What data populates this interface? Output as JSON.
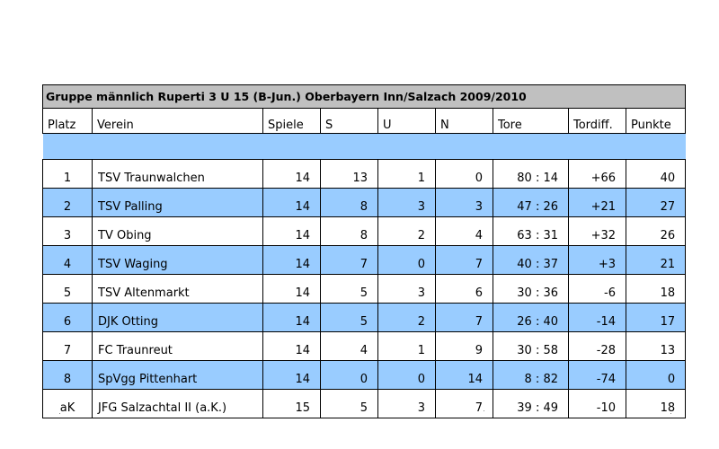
{
  "table": {
    "title": "Gruppe männlich Ruperti 3 U 15 (B-Jun.) Oberbayern Inn/Salzach 2009/2010",
    "headers": {
      "platz": "Platz",
      "verein": "Verein",
      "spiele": "Spiele",
      "s": "S",
      "u": "U",
      "n": "N",
      "tore": "Tore",
      "tordiff": "Tordiff.",
      "punkte": "Punkte"
    },
    "rows": [
      {
        "platz": "1",
        "verein": "TSV Traunwalchen",
        "spiele": "14",
        "s": "13",
        "u": "1",
        "n": "0",
        "tore": "80 : 14",
        "tordiff": "+66",
        "punkte": "40"
      },
      {
        "platz": "2",
        "verein": "TSV Palling",
        "spiele": "14",
        "s": "8",
        "u": "3",
        "n": "3",
        "tore": "47 : 26",
        "tordiff": "+21",
        "punkte": "27"
      },
      {
        "platz": "3",
        "verein": "TV Obing",
        "spiele": "14",
        "s": "8",
        "u": "2",
        "n": "4",
        "tore": "63 : 31",
        "tordiff": "+32",
        "punkte": "26"
      },
      {
        "platz": "4",
        "verein": "TSV Waging",
        "spiele": "14",
        "s": "7",
        "u": "0",
        "n": "7",
        "tore": "40 : 37",
        "tordiff": "+3",
        "punkte": "21"
      },
      {
        "platz": "5",
        "verein": "TSV Altenmarkt",
        "spiele": "14",
        "s": "5",
        "u": "3",
        "n": "6",
        "tore": "30 : 36",
        "tordiff": "-6",
        "punkte": "18"
      },
      {
        "platz": "6",
        "verein": "DJK Otting",
        "spiele": "14",
        "s": "5",
        "u": "2",
        "n": "7",
        "tore": "26 : 40",
        "tordiff": "-14",
        "punkte": "17"
      },
      {
        "platz": "7",
        "verein": "FC Traunreut",
        "spiele": "14",
        "s": "4",
        "u": "1",
        "n": "9",
        "tore": "30 : 58",
        "tordiff": "-28",
        "punkte": "13"
      },
      {
        "platz": "8",
        "verein": "SpVgg Pittenhart",
        "spiele": "14",
        "s": "0",
        "u": "0",
        "n": "14",
        "tore": "8 : 82",
        "tordiff": "-74",
        "punkte": "0"
      },
      {
        "platz": "aK",
        "verein": "JFG Salzachtal II (a.K.)",
        "spiele": "15",
        "s": "5",
        "u": "3",
        "n": "7",
        "tore": "39 : 49",
        "tordiff": "-10",
        "punkte": "18"
      }
    ]
  },
  "colors": {
    "title_bg": "#c0c0c0",
    "stripe": "#99ccff"
  }
}
